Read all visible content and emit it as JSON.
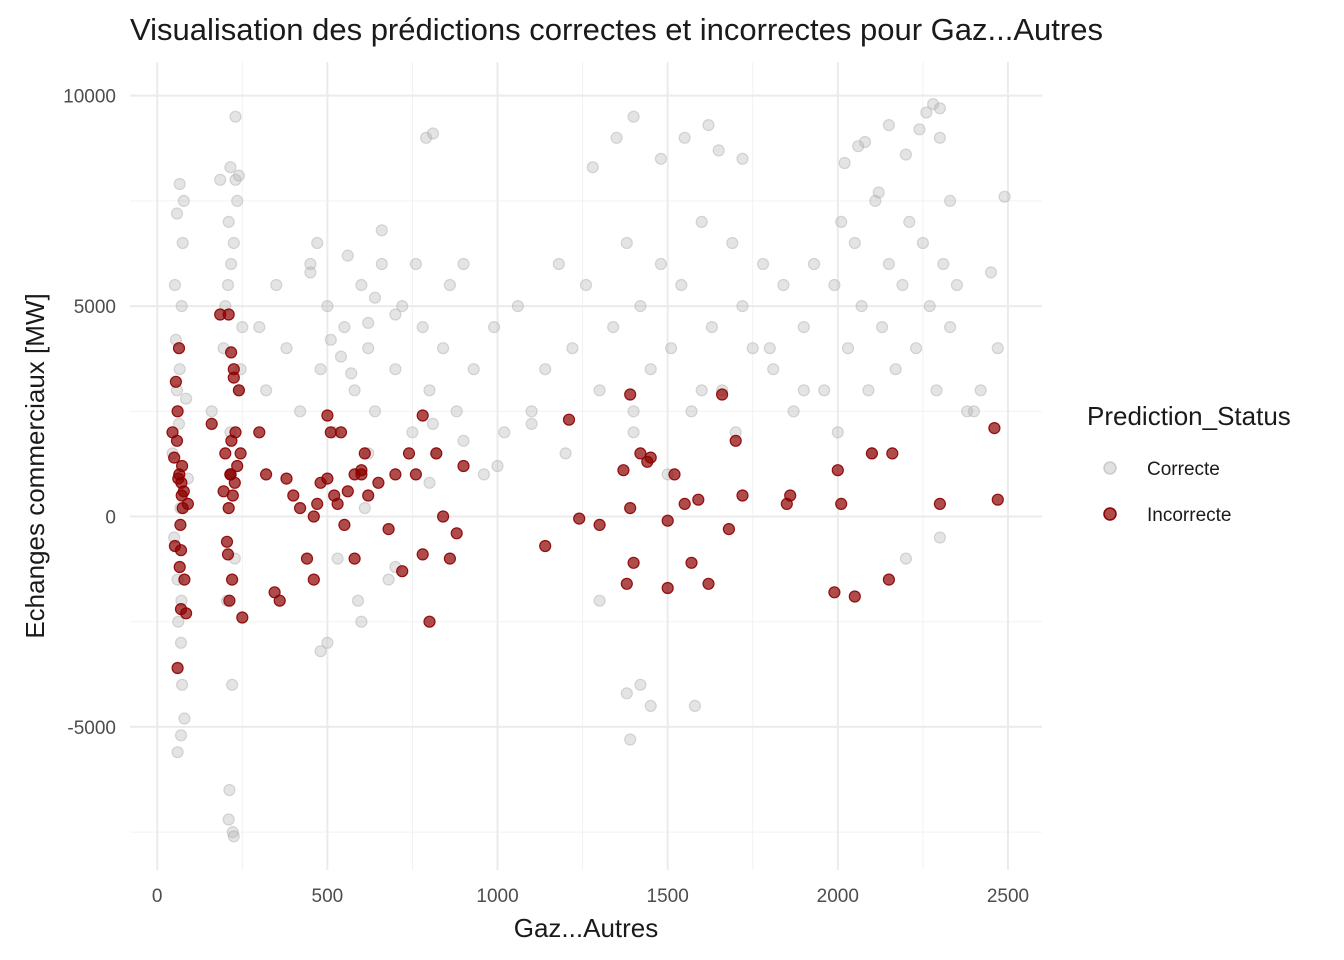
{
  "chart_data": {
    "type": "scatter",
    "title": "Visualisation des prédictions correctes et incorrectes pour Gaz...Autres",
    "xlabel": "Gaz...Autres",
    "ylabel": "Echanges commerciaux [MW]",
    "xlim": [
      -80,
      2600
    ],
    "ylim": [
      -8400,
      10800
    ],
    "x_ticks": [
      0,
      500,
      1000,
      1500,
      2000,
      2500
    ],
    "y_ticks": [
      -5000,
      0,
      5000,
      10000
    ],
    "x_tick_labels": [
      "0",
      "500",
      "1000",
      "1500",
      "2000",
      "2500"
    ],
    "y_tick_labels": [
      "-5000",
      "0",
      "5000",
      "10000"
    ],
    "grid": true,
    "legend": {
      "title": "Prediction_Status",
      "position": "right",
      "entries": [
        "Correcte",
        "Incorrecte"
      ]
    },
    "colors": {
      "Correcte": "#b3b3b3",
      "Incorrecte": "#8b0000"
    },
    "series": [
      {
        "name": "Correcte",
        "x": [
          65,
          70,
          72,
          58,
          80,
          60,
          75,
          68,
          55,
          62,
          85,
          50,
          78,
          66,
          73,
          45,
          90,
          52,
          71,
          64,
          200,
          210,
          220,
          215,
          225,
          205,
          230,
          195,
          212,
          240,
          235,
          218,
          208,
          228,
          185,
          250,
          160,
          222,
          217,
          245,
          300,
          320,
          350,
          380,
          420,
          450,
          480,
          500,
          520,
          550,
          580,
          600,
          620,
          640,
          660,
          700,
          720,
          750,
          780,
          800,
          820,
          840,
          860,
          880,
          900,
          930,
          960,
          990,
          1020,
          1060,
          1100,
          1140,
          1180,
          1220,
          1260,
          1300,
          1340,
          1380,
          1400,
          1420,
          1450,
          1480,
          1510,
          1540,
          1570,
          1600,
          1630,
          1660,
          1690,
          1720,
          1750,
          1780,
          1810,
          1840,
          1870,
          1900,
          1930,
          1960,
          1990,
          2010,
          2030,
          2050,
          2070,
          2090,
          2110,
          2130,
          2150,
          2170,
          2190,
          2210,
          2230,
          2250,
          2270,
          2290,
          2310,
          2330,
          2350,
          2380,
          2420,
          2470,
          2490,
          2450,
          2400,
          2300,
          2200,
          2100,
          2000,
          1900,
          1800,
          1700,
          1600,
          1500,
          1400,
          1300,
          1200,
          1100,
          1000,
          900,
          800,
          700,
          600,
          500,
          450,
          560,
          620,
          680,
          540,
          610,
          590,
          470,
          510,
          640,
          700,
          760,
          810,
          570,
          530,
          660,
          480,
          620,
          1380,
          1450,
          1620,
          1550,
          1720,
          1480,
          1400,
          1350,
          1650,
          1280,
          2280,
          2150,
          2060,
          2200,
          2330,
          2080,
          2240,
          2020,
          2300,
          2120,
          70,
          60,
          210,
          225,
          230,
          810,
          790,
          1390,
          1580,
          1420,
          2300,
          2260,
          215,
          240,
          66,
          58
        ],
        "y": [
          1000,
          -3000,
          5000,
          3000,
          -4800,
          -1500,
          6500,
          200,
          4200,
          -2500,
          2800,
          -500,
          7500,
          3500,
          -4000,
          1500,
          900,
          5500,
          -2000,
          2200,
          5000,
          7000,
          -4000,
          2000,
          6500,
          -2000,
          8000,
          4000,
          -6500,
          3000,
          7500,
          1000,
          5500,
          -1000,
          8000,
          4500,
          2500,
          -7500,
          6000,
          3500,
          4500,
          3000,
          5500,
          4000,
          2500,
          6000,
          3500,
          5000,
          2000,
          4500,
          3000,
          5500,
          4000,
          2500,
          6000,
          3500,
          5000,
          2000,
          4500,
          3000,
          1500,
          4000,
          5500,
          2500,
          6000,
          3500,
          1000,
          4500,
          2000,
          5000,
          2500,
          3500,
          6000,
          4000,
          5500,
          3000,
          4500,
          6500,
          2000,
          5000,
          3500,
          6000,
          4000,
          5500,
          2500,
          7000,
          4500,
          3000,
          6500,
          5000,
          4000,
          6000,
          3500,
          5500,
          2500,
          4500,
          6000,
          3000,
          5500,
          7000,
          4000,
          6500,
          5000,
          3000,
          7500,
          4500,
          6000,
          3500,
          5500,
          7000,
          4000,
          6500,
          5000,
          3000,
          6000,
          4500,
          5500,
          2500,
          3000,
          4000,
          7600,
          5800,
          2500,
          -500,
          -1000,
          1500,
          2000,
          3000,
          4000,
          2000,
          3000,
          1000,
          2500,
          -2000,
          1500,
          2200,
          1200,
          1800,
          800,
          -1200,
          -2500,
          -3000,
          5800,
          6200,
          1500,
          -1500,
          3800,
          200,
          -2000,
          6500,
          4200,
          5200,
          4800,
          6000,
          2200,
          3400,
          -1000,
          6800,
          -3200,
          4600,
          -4200,
          -4500,
          9300,
          9000,
          8500,
          8500,
          9500,
          9000,
          8700,
          8300,
          9800,
          9300,
          8800,
          8600,
          7500,
          8900,
          9200,
          8400,
          9000,
          7700,
          -5200,
          -5600,
          -7200,
          -7600,
          9500,
          9100,
          9000,
          -5300,
          -4500,
          -4000,
          9700,
          9600,
          8300,
          8100,
          7900,
          7200
        ]
      },
      {
        "name": "Incorrecte",
        "x": [
          65,
          70,
          72,
          58,
          80,
          60,
          75,
          68,
          55,
          62,
          85,
          50,
          78,
          66,
          73,
          45,
          90,
          52,
          71,
          64,
          200,
          210,
          220,
          215,
          225,
          205,
          230,
          195,
          212,
          240,
          235,
          218,
          208,
          228,
          185,
          250,
          160,
          222,
          217,
          245,
          300,
          320,
          345,
          360,
          380,
          400,
          420,
          440,
          460,
          480,
          500,
          520,
          540,
          560,
          580,
          600,
          620,
          650,
          680,
          700,
          720,
          740,
          760,
          780,
          800,
          820,
          840,
          860,
          880,
          900,
          460,
          510,
          550,
          600,
          470,
          500,
          530,
          580,
          610,
          780,
          1140,
          1210,
          1240,
          1300,
          1370,
          1390,
          1400,
          1420,
          1440,
          1450,
          1500,
          1520,
          1550,
          1590,
          1620,
          1660,
          1680,
          1700,
          1720,
          1850,
          1990,
          2010,
          2050,
          2100,
          2150,
          2160,
          2300,
          2460,
          2470,
          1380,
          1390,
          1500,
          1570,
          1860,
          2000,
          60,
          210,
          70,
          225,
          215
        ],
        "y": [
          1000,
          -800,
          500,
          1800,
          -1500,
          2500,
          200,
          -200,
          3200,
          900,
          -2300,
          1400,
          600,
          -1200,
          1200,
          2000,
          300,
          -700,
          800,
          4000,
          1500,
          200,
          -1500,
          1000,
          3500,
          -600,
          2000,
          600,
          -2000,
          3000,
          1200,
          1800,
          -900,
          800,
          4800,
          -2400,
          2200,
          500,
          3900,
          1500,
          2000,
          1000,
          -1800,
          -2000,
          900,
          500,
          200,
          -1000,
          0,
          800,
          2400,
          500,
          2000,
          600,
          -1000,
          1000,
          500,
          800,
          -300,
          1000,
          -1300,
          1500,
          1000,
          -900,
          -2500,
          1500,
          0,
          -1000,
          -400,
          1200,
          -1500,
          2000,
          -200,
          1100,
          300,
          900,
          300,
          1000,
          1500,
          2400,
          -700,
          2300,
          -50,
          -200,
          1100,
          2900,
          -1100,
          1500,
          1300,
          1400,
          -1700,
          1000,
          300,
          400,
          -1600,
          2900,
          -300,
          1800,
          500,
          300,
          -1800,
          300,
          -1900,
          1500,
          -1500,
          1500,
          300,
          2100,
          400,
          -1600,
          200,
          -100,
          -1100,
          500,
          1100,
          -3600,
          4800,
          -2200,
          3300,
          1000
        ]
      }
    ]
  }
}
